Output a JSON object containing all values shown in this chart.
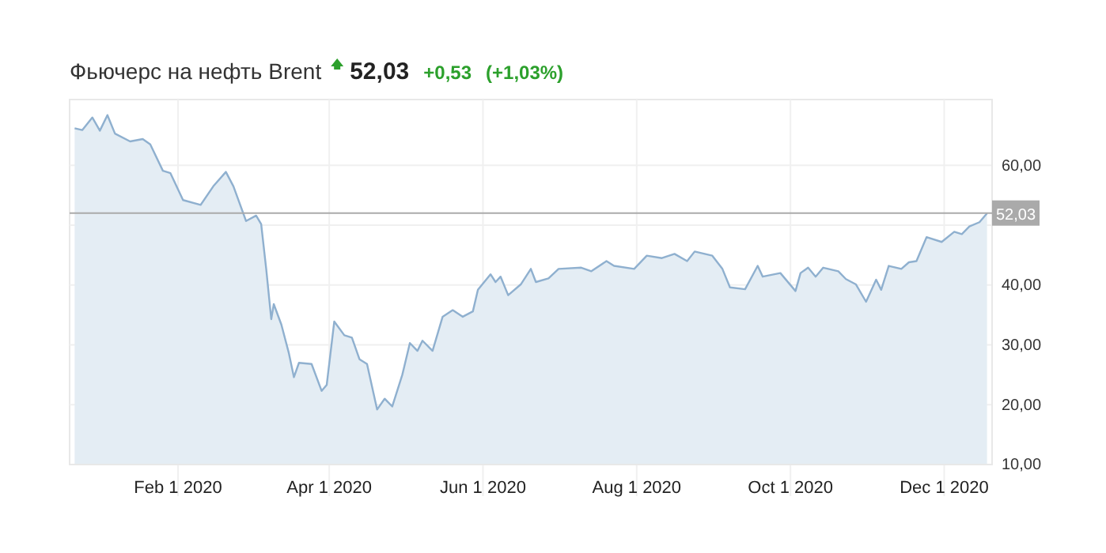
{
  "chart_data": {
    "type": "area",
    "title": "Фьючерс на нефть Brent",
    "annotations": [
      "52,03",
      "+0,53",
      "(+1,03%)"
    ],
    "x": [
      "2019-12-22",
      "2019-12-25",
      "2019-12-29",
      "2020-01-01",
      "2020-01-04",
      "2020-01-07",
      "2020-01-13",
      "2020-01-18",
      "2020-01-21",
      "2020-01-26",
      "2020-01-29",
      "2020-02-03",
      "2020-02-10",
      "2020-02-15",
      "2020-02-20",
      "2020-02-23",
      "2020-02-28",
      "2020-03-03",
      "2020-03-05",
      "2020-03-07",
      "2020-03-09",
      "2020-03-10",
      "2020-03-13",
      "2020-03-16",
      "2020-03-18",
      "2020-03-20",
      "2020-03-25",
      "2020-03-29",
      "2020-03-31",
      "2020-04-03",
      "2020-04-07",
      "2020-04-10",
      "2020-04-13",
      "2020-04-16",
      "2020-04-20",
      "2020-04-23",
      "2020-04-26",
      "2020-04-30",
      "2020-05-03",
      "2020-05-06",
      "2020-05-08",
      "2020-05-12",
      "2020-05-16",
      "2020-05-20",
      "2020-05-24",
      "2020-05-28",
      "2020-05-30",
      "2020-06-04",
      "2020-06-06",
      "2020-06-08",
      "2020-06-11",
      "2020-06-16",
      "2020-06-20",
      "2020-06-22",
      "2020-06-27",
      "2020-07-01",
      "2020-07-10",
      "2020-07-14",
      "2020-07-20",
      "2020-07-23",
      "2020-07-31",
      "2020-08-05",
      "2020-08-11",
      "2020-08-16",
      "2020-08-21",
      "2020-08-24",
      "2020-08-31",
      "2020-09-04",
      "2020-09-07",
      "2020-09-13",
      "2020-09-18",
      "2020-09-20",
      "2020-09-27",
      "2020-10-03",
      "2020-10-05",
      "2020-10-08",
      "2020-10-11",
      "2020-10-14",
      "2020-10-20",
      "2020-10-23",
      "2020-10-27",
      "2020-10-31",
      "2020-11-04",
      "2020-11-06",
      "2020-11-09",
      "2020-11-14",
      "2020-11-17",
      "2020-11-20",
      "2020-11-24",
      "2020-11-30",
      "2020-12-05",
      "2020-12-08",
      "2020-12-11",
      "2020-12-15",
      "2020-12-18"
    ],
    "series": [
      {
        "color": "#8fb0cf",
        "values": [
          66.2,
          65.9,
          68.0,
          65.8,
          68.4,
          65.3,
          64.0,
          64.4,
          63.5,
          59.1,
          58.7,
          54.2,
          53.4,
          56.5,
          58.9,
          56.5,
          50.7,
          51.6,
          50.2,
          42.7,
          34.3,
          36.8,
          33.4,
          28.6,
          24.6,
          27.0,
          26.8,
          22.3,
          23.3,
          33.9,
          31.6,
          31.2,
          27.6,
          26.8,
          19.2,
          21.0,
          19.7,
          25.0,
          30.3,
          29.0,
          30.7,
          29.0,
          34.7,
          35.8,
          34.7,
          35.6,
          39.2,
          41.8,
          40.5,
          41.4,
          38.3,
          40.1,
          42.7,
          40.5,
          41.1,
          42.7,
          42.9,
          42.3,
          44.0,
          43.2,
          42.7,
          44.9,
          44.5,
          45.2,
          44.0,
          45.6,
          44.9,
          42.7,
          39.6,
          39.3,
          43.2,
          41.4,
          42.0,
          39.0,
          42.0,
          42.9,
          41.4,
          42.9,
          42.3,
          41.0,
          40.1,
          37.2,
          40.9,
          39.2,
          43.2,
          42.7,
          43.8,
          44.0,
          48.0,
          47.2,
          48.9,
          48.5,
          49.8,
          50.5,
          52.0
        ]
      }
    ],
    "xlim": [
      "2019-12-20",
      "2020-12-20"
    ],
    "xticks": [
      {
        "value": "2020-02-01",
        "label": "Feb 1 2020"
      },
      {
        "value": "2020-04-01",
        "label": "Apr 1 2020"
      },
      {
        "value": "2020-06-01",
        "label": "Jun 1 2020"
      },
      {
        "value": "2020-08-01",
        "label": "Aug 1 2020"
      },
      {
        "value": "2020-10-01",
        "label": "Oct 1 2020"
      },
      {
        "value": "2020-12-01",
        "label": "Dec 1 2020"
      }
    ],
    "ylim": [
      10,
      71
    ],
    "yticks": [
      {
        "value": 10,
        "label": "10,00"
      },
      {
        "value": 20,
        "label": "20,00"
      },
      {
        "value": 30,
        "label": "30,00"
      },
      {
        "value": 40,
        "label": "40,00"
      },
      {
        "value": 50,
        "label": null
      },
      {
        "value": 60,
        "label": "60,00"
      }
    ],
    "ref_lines": [
      {
        "axis": "y",
        "value": 52.03,
        "label": "52,03",
        "color": "#aaaaaa"
      }
    ],
    "grid": true
  }
}
